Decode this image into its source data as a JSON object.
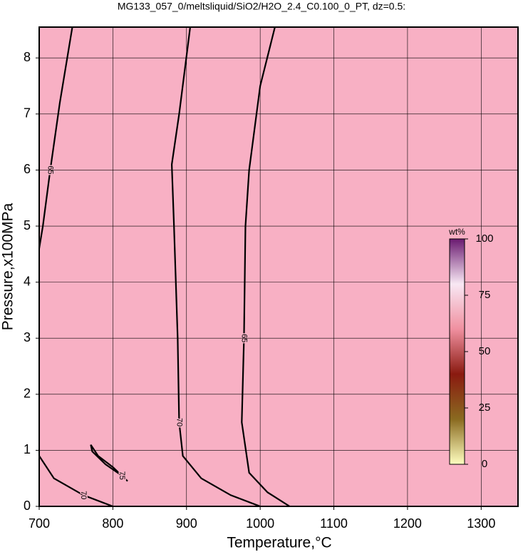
{
  "chart_data": {
    "type": "contour",
    "title": "MG133_057_0/meltsliquid/SiO2/H2O_2.4_C0.100_0_PT, dz=0.5:",
    "x_label": "Temperature,°C",
    "y_label": "Pressure,x100MPa",
    "xlim": [
      700,
      1350
    ],
    "ylim": [
      0,
      8.55
    ],
    "xticks": [
      700,
      800,
      900,
      1000,
      1100,
      1200,
      1300
    ],
    "yticks": [
      0,
      1,
      2,
      3,
      4,
      5,
      6,
      7,
      8
    ],
    "grid": true,
    "fill_color": "#f8b0c4",
    "contours": [
      {
        "level": 70,
        "x": [
          905,
          890,
          880,
          883,
          888,
          890,
          895,
          920,
          960,
          1000
        ],
        "y": [
          8.55,
          7.0,
          6.1,
          5.0,
          3.0,
          1.5,
          0.9,
          0.5,
          0.2,
          0
        ]
      },
      {
        "level": 65,
        "x": [
          1020,
          1000,
          985,
          980,
          978,
          975,
          985,
          1010,
          1040
        ],
        "y": [
          8.55,
          7.5,
          6.0,
          5.0,
          3.0,
          1.5,
          0.6,
          0.25,
          0
        ]
      },
      {
        "level": 65,
        "x": [
          745,
          728,
          715,
          705,
          700
        ],
        "y": [
          8.55,
          7.2,
          6.0,
          5.0,
          4.6
        ]
      },
      {
        "level": 70,
        "x": [
          700,
          720,
          760,
          800
        ],
        "y": [
          0.9,
          0.5,
          0.2,
          0
        ]
      },
      {
        "level": 75,
        "x": [
          770,
          780,
          800,
          820,
          812,
          790,
          772,
          770
        ],
        "y": [
          1.1,
          0.9,
          0.7,
          0.45,
          0.55,
          0.75,
          0.98,
          1.1
        ]
      }
    ],
    "colorbar": {
      "label": "wt%",
      "lim": [
        0,
        100
      ],
      "ticks": [
        0,
        25,
        50,
        75,
        100
      ],
      "colors": [
        "#ffffc0",
        "#8a6a20",
        "#8a1a10",
        "#f090a0",
        "#f8e8f4",
        "#6a1a70"
      ]
    }
  }
}
